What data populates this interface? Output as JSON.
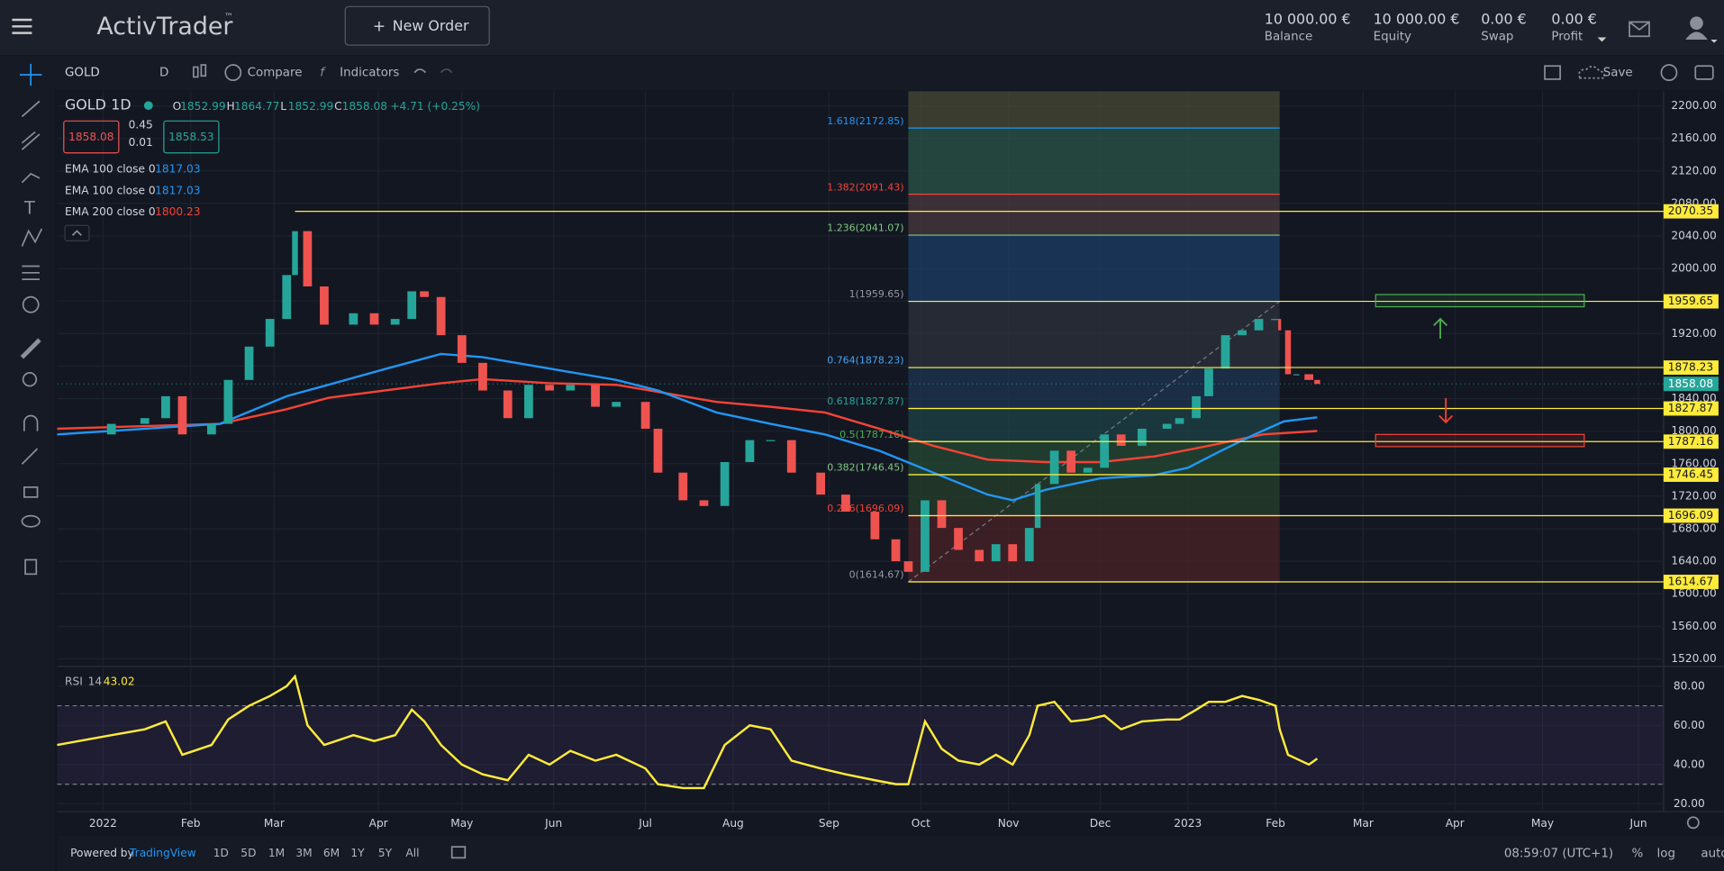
{
  "header": {
    "logo": "ActivTrader",
    "trademark": "™",
    "new_order": "New Order",
    "account": [
      {
        "value": "10 000.00 €",
        "label": "Balance"
      },
      {
        "value": "10 000.00 €",
        "label": "Equity"
      },
      {
        "value": "0.00 €",
        "label": "Swap"
      },
      {
        "value": "0.00 €",
        "label": "Profit"
      }
    ]
  },
  "toolbar": {
    "symbol": "GOLD",
    "interval": "D",
    "compare": "Compare",
    "indicators": "Indicators",
    "save": "Save"
  },
  "chart_data": {
    "type": "candlestick",
    "symbol": "GOLD",
    "interval": "1D",
    "ohlc": [
      {
        "key": "O",
        "value": 1852.99
      },
      {
        "key": "H",
        "value": 1864.77
      },
      {
        "key": "L",
        "value": 1852.99
      },
      {
        "key": "C",
        "value": 1858.08
      }
    ],
    "change": "+4.71 (+0.25%)",
    "sell": 1858.08,
    "spread": 0.45,
    "lot": 0.01,
    "buy": 1858.53,
    "indicators": [
      {
        "name": "EMA 100 close 0",
        "value": 1817.03,
        "color": "#2196f3"
      },
      {
        "name": "EMA 100 close 0",
        "value": 1817.03,
        "color": "#2196f3"
      },
      {
        "name": "EMA 200 close 0",
        "value": 1800.23,
        "color": "#f44336"
      }
    ],
    "x": [
      -11,
      2,
      10,
      15,
      19,
      26,
      30,
      35,
      40,
      44,
      46,
      49,
      53,
      60,
      65,
      70,
      74,
      77,
      81,
      86,
      91,
      97,
      102,
      107,
      112,
      118,
      123,
      130,
      133,
      139,
      144,
      149,
      155,
      160,
      165,
      172,
      178,
      185,
      190,
      193,
      197,
      201,
      205,
      210,
      214,
      218,
      222,
      224,
      228,
      232,
      236,
      240,
      244,
      249,
      255,
      258,
      262,
      265,
      269,
      273,
      277,
      281,
      282,
      284,
      286,
      289,
      291
    ],
    "values": [
      1796,
      1809,
      1816,
      1843,
      1796,
      1809,
      1863,
      1904,
      1938,
      1992,
      2046,
      1978,
      1931,
      1945,
      1931,
      1938,
      1972,
      1965,
      1918,
      1884,
      1850,
      1816,
      1857,
      1850,
      1857,
      1830,
      1836,
      1803,
      1749,
      1715,
      1708,
      1762,
      1789,
      1789,
      1749,
      1722,
      1701,
      1667,
      1640,
      1627,
      1715,
      1681,
      1654,
      1640,
      1661,
      1640,
      1681,
      1735,
      1776,
      1749,
      1755,
      1796,
      1782,
      1803,
      1809,
      1816,
      1843,
      1877,
      1918,
      1924,
      1938,
      1938,
      1924,
      1870,
      1870,
      1863,
      1858.08
    ],
    "color_up": "#26a69a",
    "color_down": "#ef5350",
    "ema100": {
      "color": "#2196f3",
      "x": [
        -11,
        28,
        44,
        54,
        68,
        81,
        91,
        107,
        123,
        133,
        147,
        160,
        173,
        186,
        199,
        212,
        218,
        226,
        239,
        252,
        260,
        268,
        276,
        283,
        291
      ],
      "values": [
        1796,
        1809,
        1843,
        1857,
        1877,
        1895,
        1891,
        1877,
        1863,
        1850,
        1823,
        1809,
        1796,
        1776,
        1749,
        1722,
        1715,
        1728,
        1742,
        1746,
        1755,
        1776,
        1796,
        1812,
        1817.03
      ]
    },
    "ema200": {
      "color": "#f44336",
      "x": [
        -11,
        28,
        44,
        54,
        81,
        91,
        107,
        123,
        147,
        160,
        173,
        186,
        199,
        212,
        226,
        239,
        252,
        265,
        278,
        291
      ],
      "values": [
        1803,
        1809,
        1827,
        1841,
        1859,
        1864,
        1859,
        1857,
        1836,
        1830,
        1823,
        1803,
        1782,
        1765,
        1762,
        1762,
        1769,
        1782,
        1796,
        1800.23
      ]
    },
    "xlim": [
      -11,
      374
    ],
    "ylim": [
      1512,
      2218
    ],
    "xticks": [
      {
        "value": 0,
        "label": "2022"
      },
      {
        "value": 21,
        "label": "Feb"
      },
      {
        "value": 41,
        "label": "Mar"
      },
      {
        "value": 66,
        "label": "Apr"
      },
      {
        "value": 86,
        "label": "May"
      },
      {
        "value": 108,
        "label": "Jun"
      },
      {
        "value": 130,
        "label": "Jul"
      },
      {
        "value": 151,
        "label": "Aug"
      },
      {
        "value": 174,
        "label": "Sep"
      },
      {
        "value": 196,
        "label": "Oct"
      },
      {
        "value": 217,
        "label": "Nov"
      },
      {
        "value": 239,
        "label": "Dec"
      },
      {
        "value": 260,
        "label": "2023"
      },
      {
        "value": 281,
        "label": "Feb"
      },
      {
        "value": 302,
        "label": "Mar"
      },
      {
        "value": 324,
        "label": "Apr"
      },
      {
        "value": 345,
        "label": "May"
      },
      {
        "value": 368,
        "label": "Jun"
      }
    ],
    "yticks": [
      {
        "value": 1520,
        "label": "1520.00"
      },
      {
        "value": 1560,
        "label": "1560.00"
      },
      {
        "value": 1600,
        "label": "1600.00"
      },
      {
        "value": 1640,
        "label": "1640.00"
      },
      {
        "value": 1680,
        "label": "1680.00"
      },
      {
        "value": 1720,
        "label": "1720.00"
      },
      {
        "value": 1760,
        "label": "1760.00"
      },
      {
        "value": 1800,
        "label": "1800.00"
      },
      {
        "value": 1840,
        "label": "1840.00"
      },
      {
        "value": 1880,
        "label": "1880.00"
      },
      {
        "value": 1920,
        "label": "1920.00"
      },
      {
        "value": 1960,
        "label": "1960.00"
      },
      {
        "value": 2000,
        "label": "2000.00"
      },
      {
        "value": 2040,
        "label": "2040.00"
      },
      {
        "value": 2080,
        "label": "2080.00"
      },
      {
        "value": 2120,
        "label": "2120.00"
      },
      {
        "value": 2160,
        "label": "2160.00"
      },
      {
        "value": 2200,
        "label": "2200.00"
      }
    ],
    "grid": true,
    "fib": {
      "x": [
        193,
        282
      ],
      "top_fill": "#4a4a35",
      "levels": [
        {
          "label": "1.618(2172.85)",
          "value": 2172.85,
          "color": "#2196f3",
          "fill": "#2a5548"
        },
        {
          "label": "1.382(2091.43)",
          "value": 2091.43,
          "color": "#f44336",
          "fill": "#4a3a40"
        },
        {
          "label": "1.236(2041.07)",
          "value": 2041.07,
          "color": "#81c784",
          "fill": "#1c3d66"
        },
        {
          "label": "1(1959.65)",
          "value": 1959.65,
          "color": "#9598a1",
          "fill": "#2e323c"
        },
        {
          "label": "0.764(1878.23)",
          "value": 1878.23,
          "color": "#42a5f5",
          "fill": "#1e3552"
        },
        {
          "label": "0.618(1827.87)",
          "value": 1827.87,
          "color": "#26a69a",
          "fill": "#1d4347"
        },
        {
          "label": "0.5(1787.16)",
          "value": 1787.16,
          "color": "#4caf50",
          "fill": "#244a33"
        },
        {
          "label": "0.382(1746.45)",
          "value": 1746.45,
          "color": "#81c784",
          "fill": "#263f2b"
        },
        {
          "label": "0.236(1696.09)",
          "value": 1696.09,
          "color": "#f44336",
          "fill": "#4a2327"
        },
        {
          "label": "0(1614.67)",
          "value": 1614.67,
          "color": "#9598a1",
          "fill": null
        }
      ]
    },
    "hline_color": "#ffeb3b",
    "hlines": [
      {
        "value": 2070.35,
        "x_start": 46
      },
      {
        "value": 1959.65,
        "x_start": 193
      },
      {
        "value": 1878.23,
        "x_start": 193
      },
      {
        "value": 1827.87,
        "x_start": 193
      },
      {
        "value": 1787.16,
        "x_start": 193
      },
      {
        "value": 1746.45,
        "x_start": 193
      },
      {
        "value": 1696.09,
        "x_start": 193
      },
      {
        "value": 1614.67,
        "x_start": 193
      }
    ],
    "last_price": 1858.08,
    "boxes": [
      {
        "x": [
          305,
          355
        ],
        "y": [
          1953,
          1968
        ],
        "color": "#4caf50"
      },
      {
        "x": [
          305,
          355
        ],
        "y": [
          1781,
          1796
        ],
        "color": "#f44336"
      }
    ],
    "rsi": {
      "name": "RSI",
      "period": 14,
      "last": 43.02,
      "color": "#ffeb3b",
      "ylim": [
        16,
        89.5
      ],
      "bands": [
        30,
        70
      ],
      "yticks": [
        {
          "value": 20,
          "label": "20.00"
        },
        {
          "value": 40,
          "label": "40.00"
        },
        {
          "value": 60,
          "label": "60.00"
        },
        {
          "value": 80,
          "label": "80.00"
        }
      ],
      "values": [
        50,
        55,
        58,
        62,
        45,
        50,
        63,
        70,
        75,
        80,
        85,
        60,
        50,
        55,
        52,
        55,
        68,
        62,
        50,
        40,
        35,
        32,
        45,
        40,
        47,
        42,
        45,
        38,
        30,
        28,
        28,
        50,
        60,
        58,
        42,
        38,
        35,
        32,
        30,
        30,
        62,
        48,
        42,
        40,
        45,
        40,
        55,
        70,
        72,
        62,
        63,
        65,
        58,
        62,
        63,
        63,
        68,
        72,
        72,
        75,
        73,
        70,
        58,
        45,
        43,
        40,
        43.02
      ]
    }
  },
  "footer": {
    "powered_by": "Powered by",
    "tradingview": "TradingView",
    "ranges": [
      "1D",
      "5D",
      "1M",
      "3M",
      "6M",
      "1Y",
      "5Y",
      "All"
    ],
    "clock": "08:59:07 (UTC+1)",
    "percent": "%",
    "log": "log",
    "auto": "auto"
  }
}
